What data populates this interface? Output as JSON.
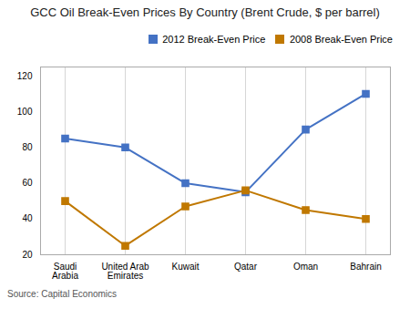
{
  "chart_data": {
    "type": "line",
    "title": "GCC Oil Break-Even Prices By Country (Brent Crude, $ per barrel)",
    "caption": "Source: Capital Economics",
    "categories": [
      "Saudi\nArabia",
      "United Arab\nEmirates",
      "Kuwait",
      "Qatar",
      "Oman",
      "Bahrain"
    ],
    "series": [
      {
        "name": "2012 Break-Even Price",
        "color": "#4472C4",
        "marker": "square",
        "values": [
          85,
          80,
          60,
          55,
          90,
          110
        ]
      },
      {
        "name": "2008 Break-Even Price",
        "color": "#C07800",
        "marker": "square",
        "values": [
          50,
          25,
          47,
          56,
          45,
          40
        ]
      }
    ],
    "ylim": [
      20,
      125
    ],
    "yticks": [
      20,
      40,
      60,
      80,
      100,
      120
    ],
    "grid": "x",
    "legend": "upper right"
  }
}
